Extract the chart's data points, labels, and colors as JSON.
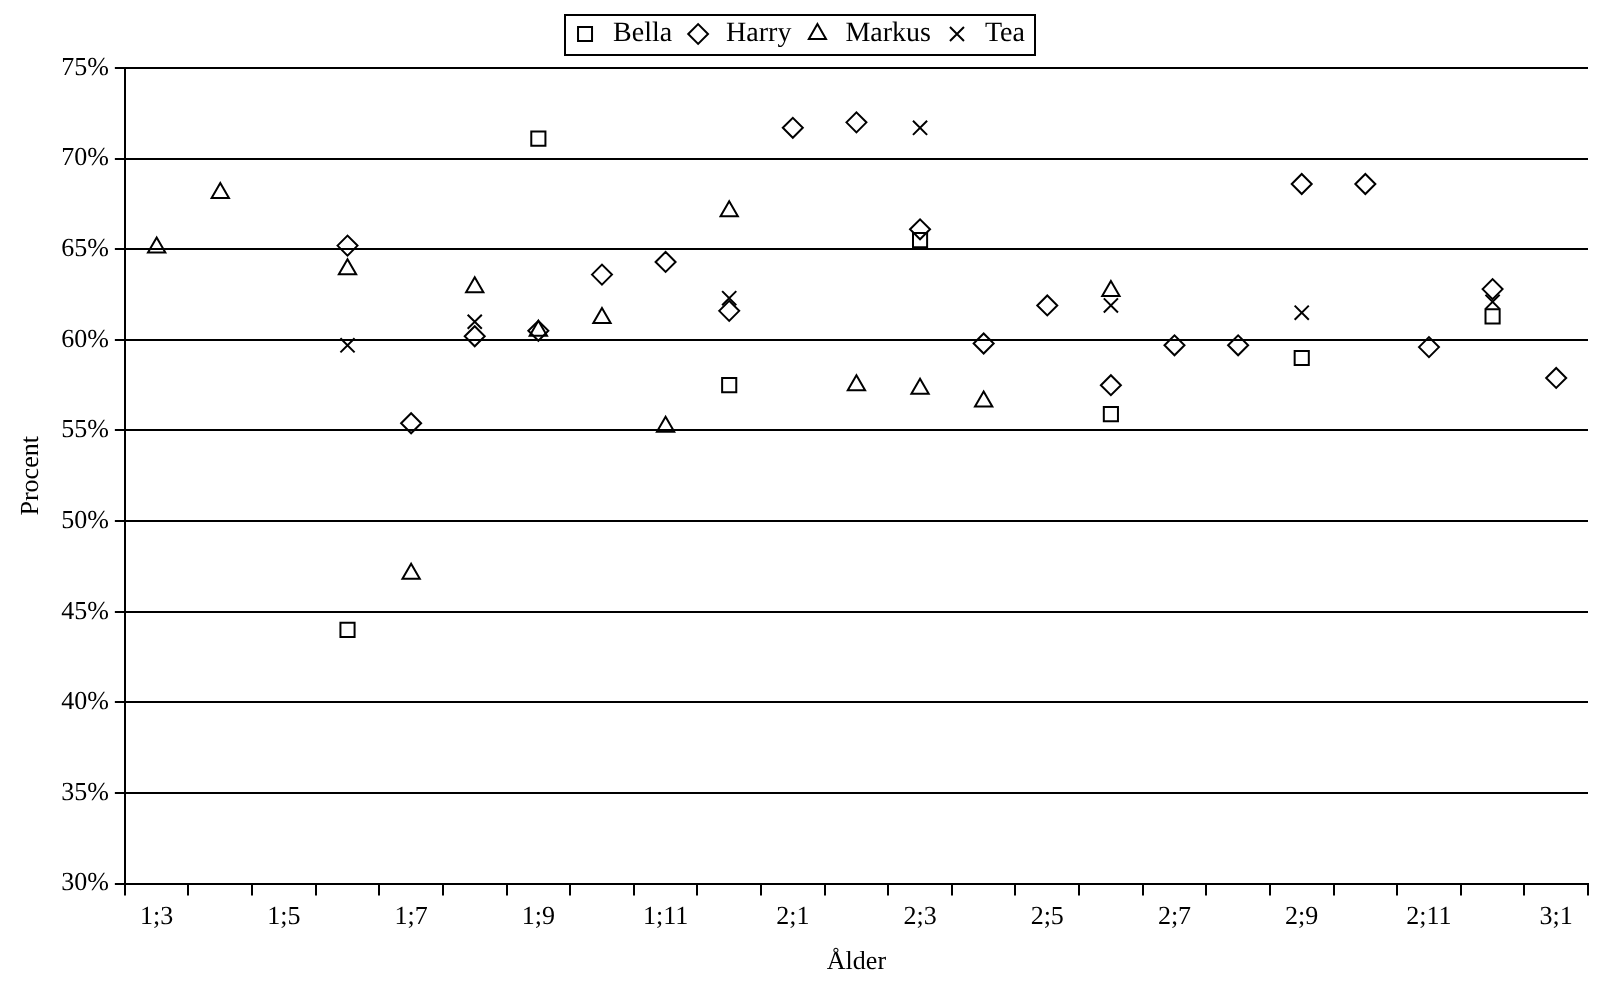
{
  "chart_data": {
    "type": "scatter",
    "xlabel": "Ålder",
    "ylabel": "Procent",
    "categories": [
      "1;3",
      null,
      "1;5",
      null,
      "1;7",
      null,
      "1;9",
      null,
      "1;11",
      null,
      "2;1",
      null,
      "2;3",
      null,
      "2;5",
      null,
      "2;7",
      null,
      "2;9",
      null,
      "2;11",
      null,
      "3;1"
    ],
    "ylim": [
      30,
      75
    ],
    "yticks": [
      {
        "value": 30,
        "label": "30%"
      },
      {
        "value": 35,
        "label": "35%"
      },
      {
        "value": 40,
        "label": "40%"
      },
      {
        "value": 45,
        "label": "45%"
      },
      {
        "value": 50,
        "label": "50%"
      },
      {
        "value": 55,
        "label": "55%"
      },
      {
        "value": 60,
        "label": "60%"
      },
      {
        "value": 65,
        "label": "65%"
      },
      {
        "value": 70,
        "label": "70%"
      },
      {
        "value": 75,
        "label": "75%"
      }
    ],
    "grid": "y",
    "legend": "top",
    "series": [
      {
        "name": "Bella",
        "color": "#000000",
        "marker": "square",
        "values": [
          null,
          null,
          null,
          44.0,
          null,
          null,
          71.1,
          null,
          null,
          57.5,
          null,
          null,
          65.5,
          null,
          null,
          55.9,
          null,
          null,
          59.0,
          null,
          null,
          61.3,
          null
        ]
      },
      {
        "name": "Harry",
        "color": "#000000",
        "marker": "diamond",
        "values": [
          null,
          null,
          null,
          65.2,
          55.4,
          60.2,
          60.5,
          63.6,
          64.3,
          61.6,
          71.7,
          72.0,
          66.1,
          59.8,
          61.9,
          57.5,
          59.7,
          59.7,
          68.6,
          68.6,
          59.6,
          62.8,
          57.9
        ]
      },
      {
        "name": "Markus",
        "color": "#000000",
        "marker": "triangle",
        "values": [
          65.1,
          68.1,
          null,
          63.9,
          47.1,
          62.9,
          60.5,
          61.2,
          55.2,
          67.1,
          null,
          57.5,
          57.3,
          56.6,
          null,
          62.7,
          null,
          null,
          null,
          null,
          null,
          null,
          null
        ]
      },
      {
        "name": "Tea",
        "color": "#000000",
        "marker": "cross",
        "values": [
          null,
          null,
          null,
          59.7,
          null,
          61.0,
          null,
          null,
          null,
          62.3,
          null,
          null,
          71.7,
          null,
          null,
          61.9,
          null,
          null,
          61.5,
          null,
          null,
          62.1,
          null
        ]
      }
    ]
  }
}
